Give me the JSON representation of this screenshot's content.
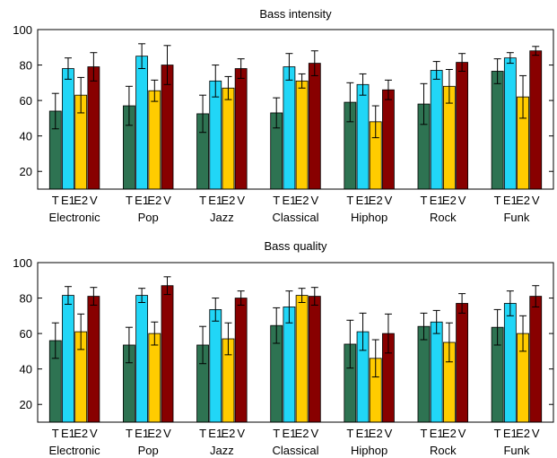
{
  "chart_data": [
    {
      "type": "bar",
      "title": "Bass intensity",
      "ylim": [
        10,
        100
      ],
      "yticks": [
        20,
        40,
        60,
        80,
        100
      ],
      "grid": false,
      "bar_labels": [
        "T",
        "E1",
        "E2",
        "V"
      ],
      "categories": [
        "Electronic",
        "Pop",
        "Jazz",
        "Classical",
        "Hiphop",
        "Rock",
        "Funk"
      ],
      "series": [
        {
          "values": [
            54,
            57,
            52.5,
            53,
            59,
            58,
            76.5
          ],
          "errors": [
            10,
            11,
            10.5,
            8.5,
            11,
            11.5,
            7
          ]
        },
        {
          "values": [
            78,
            85,
            71,
            79,
            69,
            77,
            84
          ],
          "errors": [
            6,
            7,
            9,
            7.5,
            6,
            5,
            3
          ]
        },
        {
          "values": [
            63,
            65.5,
            67,
            71,
            48,
            68,
            62
          ],
          "errors": [
            10,
            6,
            6.5,
            4,
            9,
            9.5,
            12
          ]
        },
        {
          "values": [
            79,
            80,
            78,
            81,
            66,
            81.5,
            88
          ],
          "errors": [
            8,
            11,
            5.5,
            7,
            5.5,
            5,
            2.5
          ]
        }
      ],
      "colors": [
        "#2e7352",
        "#21d6f7",
        "#ffcc00",
        "#880000"
      ]
    },
    {
      "type": "bar",
      "title": "Bass quality",
      "ylim": [
        10,
        100
      ],
      "yticks": [
        20,
        40,
        60,
        80,
        100
      ],
      "grid": false,
      "bar_labels": [
        "T",
        "E1",
        "E2",
        "V"
      ],
      "categories": [
        "Electronic",
        "Pop",
        "Jazz",
        "Classical",
        "Hiphop",
        "Rock",
        "Funk"
      ],
      "series": [
        {
          "values": [
            56,
            53.5,
            53.5,
            64.5,
            54,
            64,
            63.5
          ],
          "errors": [
            10,
            10,
            10.5,
            10,
            13.5,
            7.5,
            10
          ]
        },
        {
          "values": [
            81.5,
            81.5,
            73.5,
            75,
            61,
            66.5,
            77
          ],
          "errors": [
            5,
            4,
            6.5,
            9,
            10.5,
            6.5,
            7
          ]
        },
        {
          "values": [
            61,
            60,
            57,
            81.5,
            46,
            55,
            60
          ],
          "errors": [
            10,
            6.5,
            9,
            4,
            10.5,
            11,
            10
          ]
        },
        {
          "values": [
            81,
            87,
            80,
            81,
            60,
            77,
            81
          ],
          "errors": [
            5,
            5,
            4,
            5,
            11,
            5.5,
            6
          ]
        }
      ],
      "colors": [
        "#2e7352",
        "#21d6f7",
        "#ffcc00",
        "#880000"
      ]
    }
  ]
}
